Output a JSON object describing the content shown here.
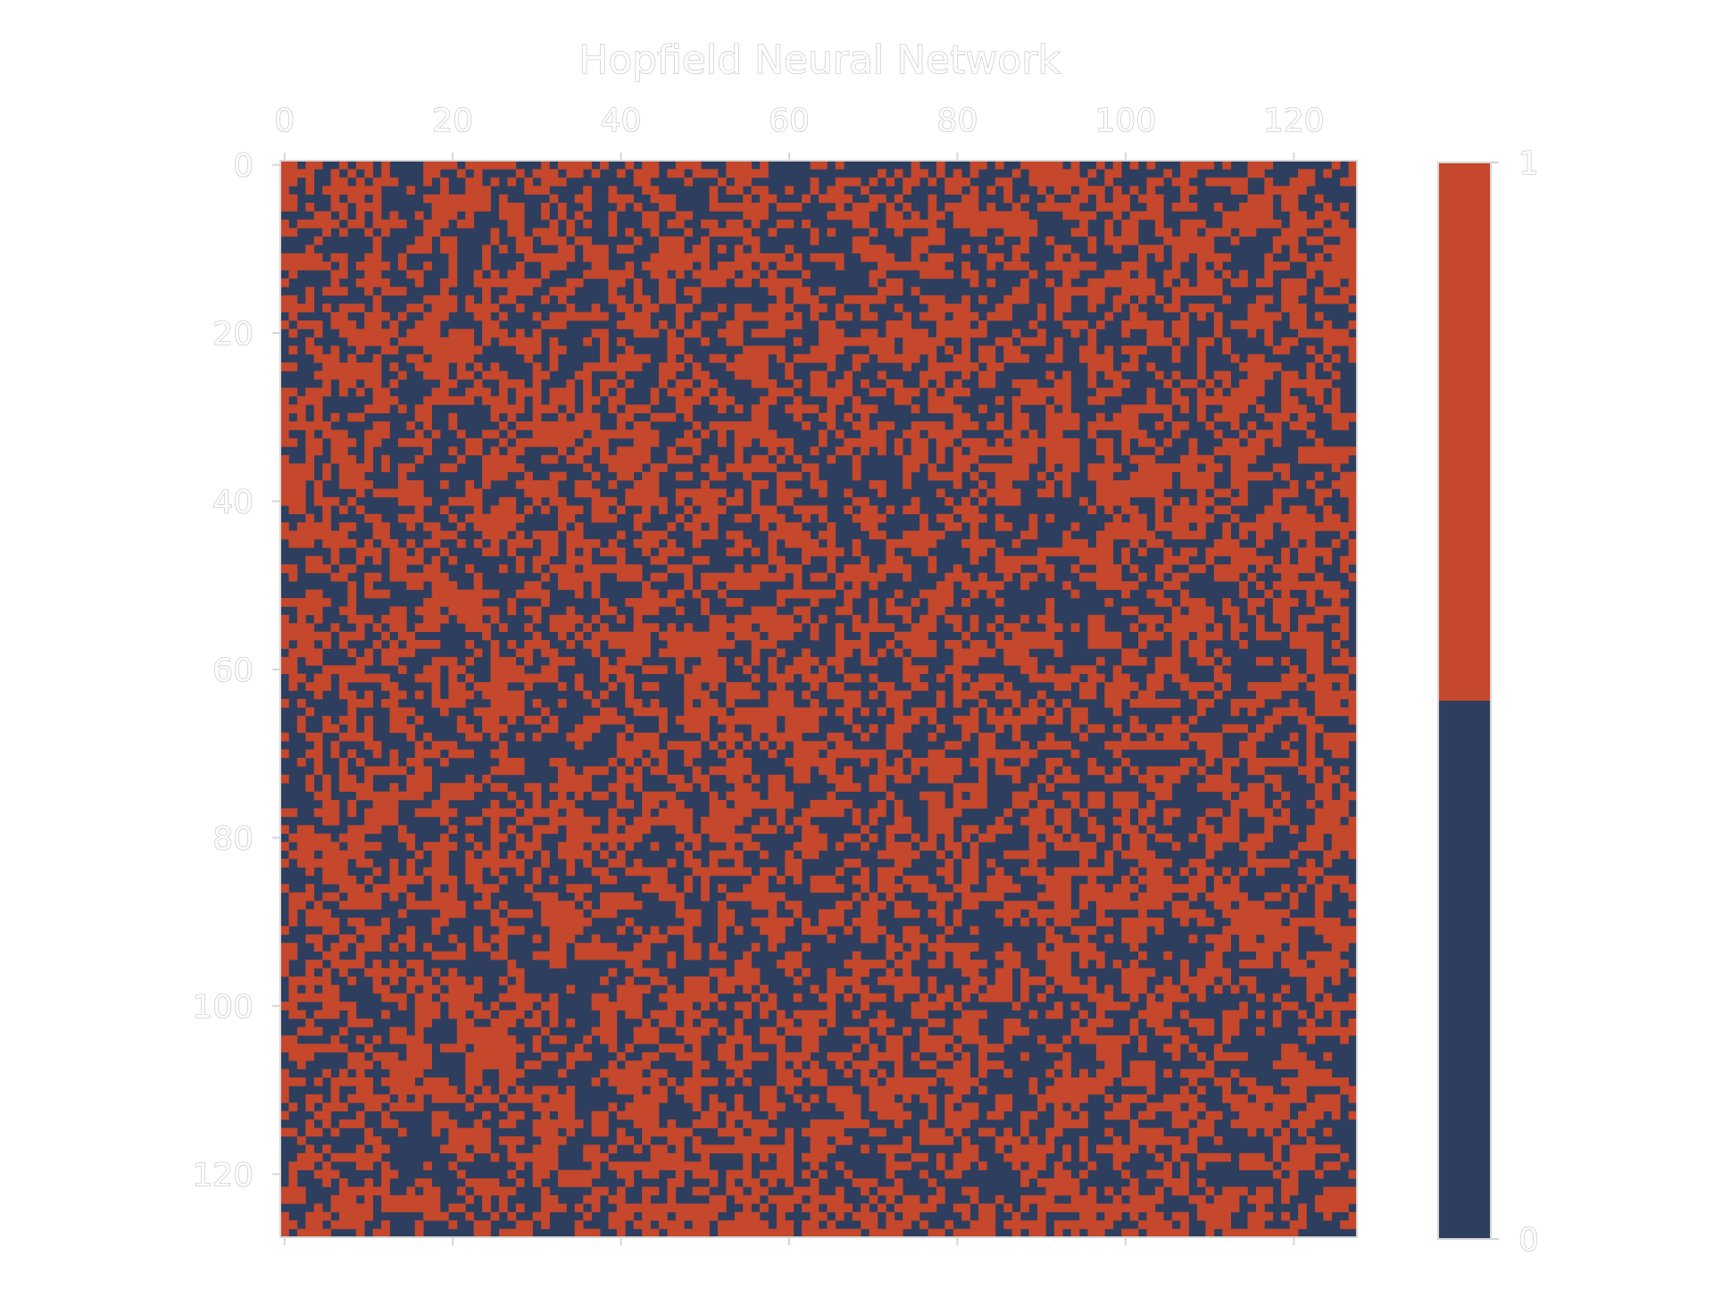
{
  "chart_data": {
    "type": "heatmap",
    "title": "Hopfield Neural Network",
    "xlabel": "",
    "ylabel": "",
    "rows": 128,
    "cols": 128,
    "cell_values": [
      0,
      1
    ],
    "value_note": "binary neuron states, pattern appears random (approx. half 0, half 1)",
    "x_ticks": [
      "0",
      "20",
      "40",
      "60",
      "80",
      "100",
      "120"
    ],
    "y_ticks": [
      "0",
      "20",
      "40",
      "60",
      "80",
      "100",
      "120"
    ],
    "x_axis_position": "top",
    "xlim": [
      -0.5,
      127.5
    ],
    "ylim": [
      127.5,
      -0.5
    ],
    "colorbar": {
      "ticks": [
        "0",
        "1"
      ],
      "range": [
        0,
        1
      ],
      "split": 0.5,
      "colors": [
        "#2e3e5e",
        "#c5472c"
      ]
    },
    "grid": false
  },
  "colors": {
    "zero": "#2e3e5e",
    "one": "#c5472c",
    "frame": "#d6d6d6",
    "text_outline": "#b8b8b8"
  }
}
